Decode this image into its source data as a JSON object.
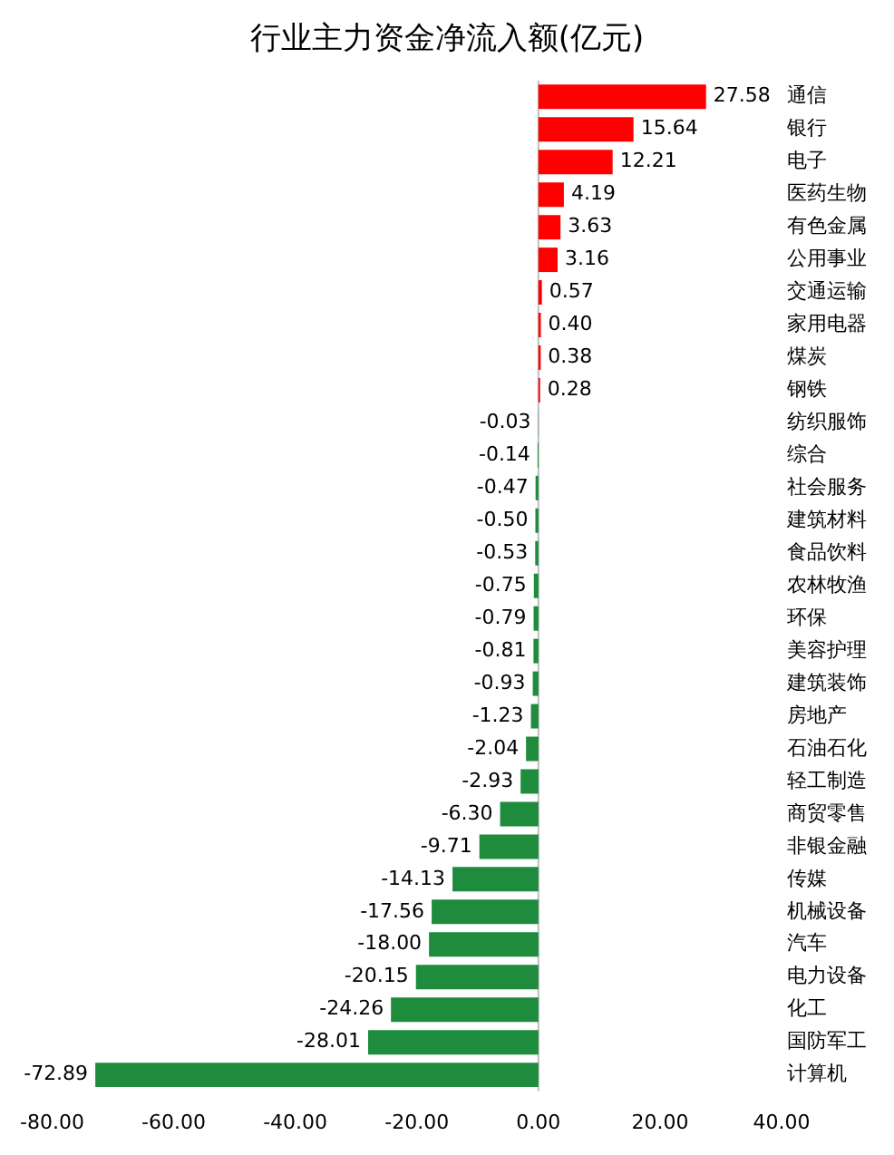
{
  "chart_data": {
    "type": "bar",
    "orientation": "horizontal",
    "title": "行业主力资金净流入额(亿元)",
    "categories": [
      "通信",
      "银行",
      "电子",
      "医药生物",
      "有色金属",
      "公用事业",
      "交通运输",
      "家用电器",
      "煤炭",
      "钢铁",
      "纺织服饰",
      "综合",
      "社会服务",
      "建筑材料",
      "食品饮料",
      "农林牧渔",
      "环保",
      "美容护理",
      "建筑装饰",
      "房地产",
      "石油石化",
      "轻工制造",
      "商贸零售",
      "非银金融",
      "传媒",
      "机械设备",
      "汽车",
      "电力设备",
      "化工",
      "国防军工",
      "计算机"
    ],
    "values": [
      27.58,
      15.64,
      12.21,
      4.19,
      3.63,
      3.16,
      0.57,
      0.4,
      0.38,
      0.28,
      -0.03,
      -0.14,
      -0.47,
      -0.5,
      -0.53,
      -0.75,
      -0.79,
      -0.81,
      -0.93,
      -1.23,
      -2.04,
      -2.93,
      -6.3,
      -9.71,
      -14.13,
      -17.56,
      -18.0,
      -20.15,
      -24.26,
      -28.01,
      -72.89
    ],
    "value_labels": [
      "27.58",
      "15.64",
      "12.21",
      "4.19",
      "3.63",
      "3.16",
      "0.57",
      "0.40",
      "0.38",
      "0.28",
      "-0.03",
      "-0.14",
      "-0.47",
      "-0.50",
      "-0.53",
      "-0.75",
      "-0.79",
      "-0.81",
      "-0.93",
      "-1.23",
      "-2.04",
      "-2.93",
      "-6.30",
      "-9.71",
      "-14.13",
      "-17.56",
      "-18.00",
      "-20.15",
      "-24.26",
      "-28.01",
      "-72.89"
    ],
    "colors": [
      "#ff0000",
      "#ff0000",
      "#ff0000",
      "#ff0000",
      "#ff0000",
      "#ff0000",
      "#ff0000",
      "#ff0000",
      "#ff0000",
      "#ff0000",
      "#1e8c3c",
      "#1e8c3c",
      "#1e8c3c",
      "#1e8c3c",
      "#1e8c3c",
      "#1e8c3c",
      "#1e8c3c",
      "#1e8c3c",
      "#1e8c3c",
      "#1e8c3c",
      "#1e8c3c",
      "#1e8c3c",
      "#1e8c3c",
      "#1e8c3c",
      "#1e8c3c",
      "#1e8c3c",
      "#1e8c3c",
      "#1e8c3c",
      "#1e8c3c",
      "#1e8c3c",
      "#1e8c3c"
    ],
    "xlim": [
      -80,
      40
    ],
    "xticks": [
      {
        "value": -80,
        "label": "-80.00"
      },
      {
        "value": -60,
        "label": "-60.00"
      },
      {
        "value": -40,
        "label": "-40.00"
      },
      {
        "value": -20,
        "label": "-20.00"
      },
      {
        "value": 0,
        "label": "0.00"
      },
      {
        "value": 20,
        "label": "20.00"
      },
      {
        "value": 40,
        "label": "40.00"
      }
    ],
    "ref_lines": [
      {
        "axis": "x",
        "value": 0,
        "color": "#bfbfbf"
      }
    ],
    "grid": false,
    "legend": false
  }
}
